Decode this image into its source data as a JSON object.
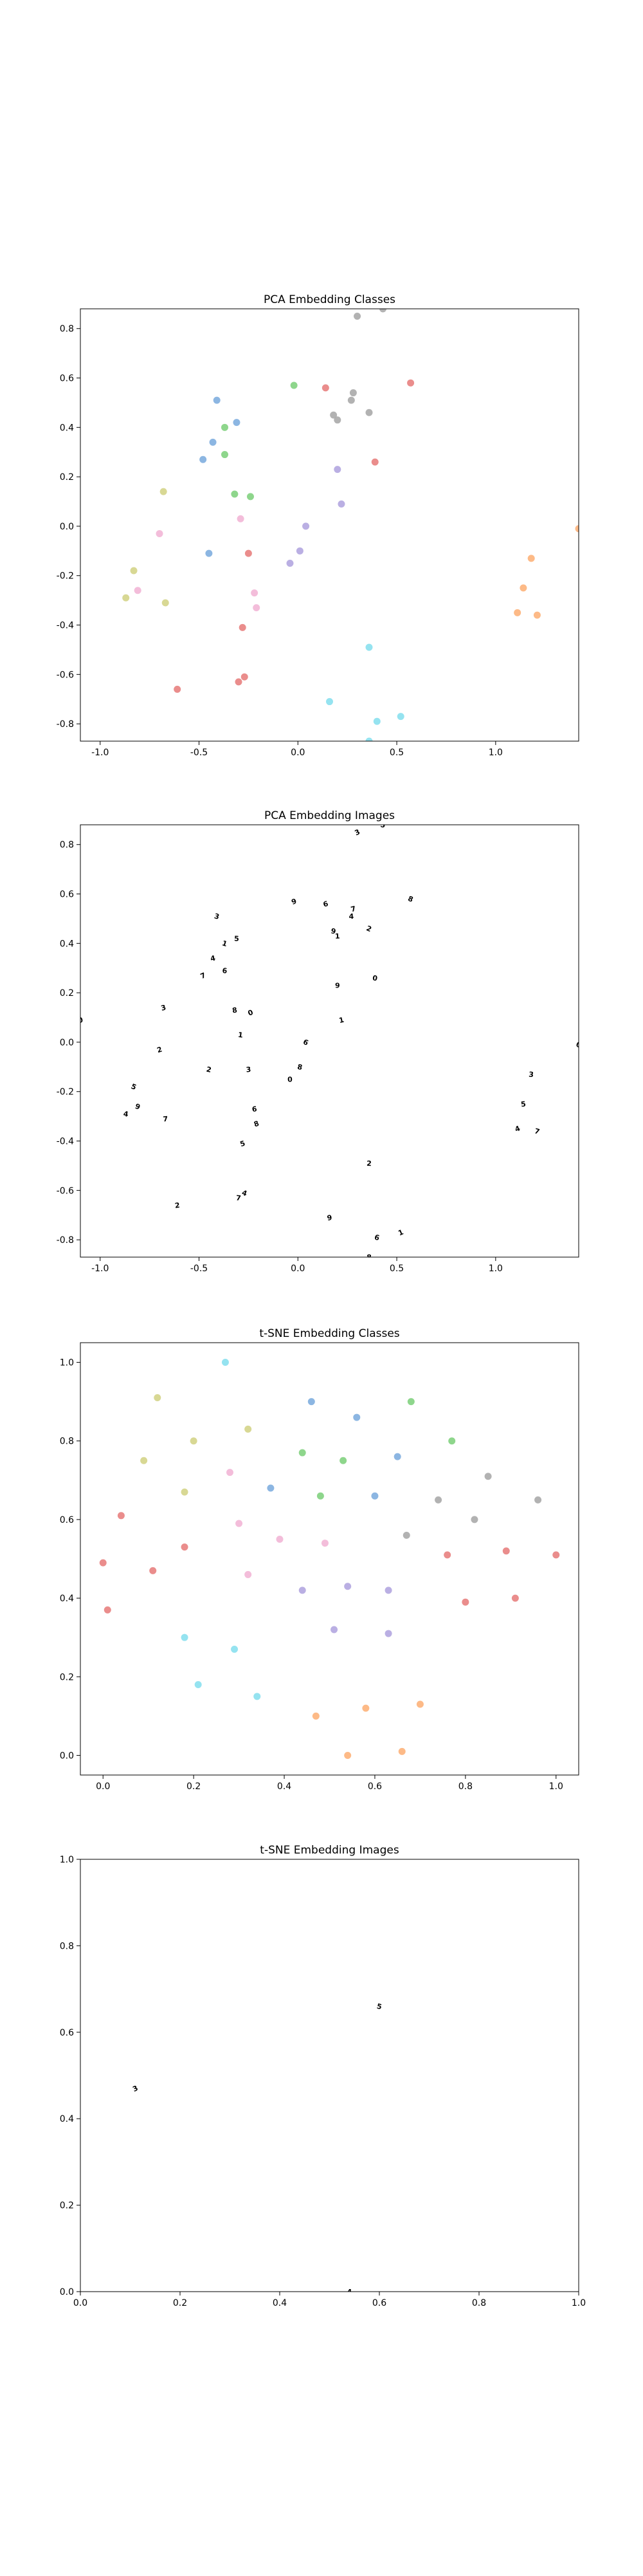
{
  "chart_data": [
    {
      "type": "scatter",
      "title": "PCA Embedding Classes",
      "xlim": [
        -1.1,
        1.42
      ],
      "ylim": [
        -0.87,
        0.88
      ],
      "xticks": [
        "-1.0",
        "-0.5",
        "0.0",
        "0.5",
        "1.0"
      ],
      "yticks": [
        "-0.8",
        "-0.6",
        "-0.4",
        "-0.2",
        "0.0",
        "0.2",
        "0.4",
        "0.6",
        "0.8"
      ],
      "marker": "point",
      "points": [
        {
          "x": 0.3,
          "y": 0.85,
          "c": "#aaaaaa"
        },
        {
          "x": 0.43,
          "y": 0.88,
          "c": "#aaaaaa"
        },
        {
          "x": 0.27,
          "y": 0.51,
          "c": "#aaaaaa"
        },
        {
          "x": 0.28,
          "y": 0.54,
          "c": "#aaaaaa"
        },
        {
          "x": 0.36,
          "y": 0.46,
          "c": "#aaaaaa"
        },
        {
          "x": 0.18,
          "y": 0.45,
          "c": "#aaaaaa"
        },
        {
          "x": 0.2,
          "y": 0.43,
          "c": "#aaaaaa"
        },
        {
          "x": 0.14,
          "y": 0.56,
          "c": "#e8817f"
        },
        {
          "x": 0.57,
          "y": 0.58,
          "c": "#e8817f"
        },
        {
          "x": 0.39,
          "y": 0.26,
          "c": "#e8817f"
        },
        {
          "x": -0.25,
          "y": -0.11,
          "c": "#e8817f"
        },
        {
          "x": -0.28,
          "y": -0.41,
          "c": "#e8817f"
        },
        {
          "x": -0.27,
          "y": -0.61,
          "c": "#e8817f"
        },
        {
          "x": -0.3,
          "y": -0.63,
          "c": "#e8817f"
        },
        {
          "x": -0.61,
          "y": -0.66,
          "c": "#e8817f"
        },
        {
          "x": -0.02,
          "y": 0.57,
          "c": "#82d17f"
        },
        {
          "x": -0.37,
          "y": 0.4,
          "c": "#82d17f"
        },
        {
          "x": -0.37,
          "y": 0.29,
          "c": "#82d17f"
        },
        {
          "x": -0.32,
          "y": 0.13,
          "c": "#82d17f"
        },
        {
          "x": -0.24,
          "y": 0.12,
          "c": "#82d17f"
        },
        {
          "x": -0.41,
          "y": 0.51,
          "c": "#7faedf"
        },
        {
          "x": -0.31,
          "y": 0.42,
          "c": "#7faedf"
        },
        {
          "x": -0.43,
          "y": 0.34,
          "c": "#7faedf"
        },
        {
          "x": -0.48,
          "y": 0.27,
          "c": "#7faedf"
        },
        {
          "x": -0.45,
          "y": -0.11,
          "c": "#7faedf"
        },
        {
          "x": 0.2,
          "y": 0.23,
          "c": "#b3a6e0"
        },
        {
          "x": 0.22,
          "y": 0.09,
          "c": "#b3a6e0"
        },
        {
          "x": 0.04,
          "y": 0.0,
          "c": "#b3a6e0"
        },
        {
          "x": 0.01,
          "y": -0.1,
          "c": "#b3a6e0"
        },
        {
          "x": -0.04,
          "y": -0.15,
          "c": "#b3a6e0"
        },
        {
          "x": -0.68,
          "y": 0.14,
          "c": "#d4d488"
        },
        {
          "x": -0.83,
          "y": -0.18,
          "c": "#d4d488"
        },
        {
          "x": -0.87,
          "y": -0.29,
          "c": "#d4d488"
        },
        {
          "x": -0.67,
          "y": -0.31,
          "c": "#d4d488"
        },
        {
          "x": -0.7,
          "y": -0.03,
          "c": "#f2b6d6"
        },
        {
          "x": -0.81,
          "y": -0.26,
          "c": "#f2b6d6"
        },
        {
          "x": -0.29,
          "y": 0.03,
          "c": "#f2b6d6"
        },
        {
          "x": -0.22,
          "y": -0.27,
          "c": "#f2b6d6"
        },
        {
          "x": -0.21,
          "y": -0.33,
          "c": "#f2b6d6"
        },
        {
          "x": 1.42,
          "y": -0.01,
          "c": "#fdb27a"
        },
        {
          "x": 1.18,
          "y": -0.13,
          "c": "#fdb27a"
        },
        {
          "x": 1.14,
          "y": -0.25,
          "c": "#fdb27a"
        },
        {
          "x": 1.11,
          "y": -0.35,
          "c": "#fdb27a"
        },
        {
          "x": 1.21,
          "y": -0.36,
          "c": "#fdb27a"
        },
        {
          "x": 0.36,
          "y": -0.49,
          "c": "#8ae0ee"
        },
        {
          "x": 0.16,
          "y": -0.71,
          "c": "#8ae0ee"
        },
        {
          "x": 0.52,
          "y": -0.77,
          "c": "#8ae0ee"
        },
        {
          "x": 0.4,
          "y": -0.79,
          "c": "#8ae0ee"
        },
        {
          "x": 0.36,
          "y": -0.87,
          "c": "#8ae0ee"
        }
      ]
    },
    {
      "type": "scatter",
      "title": "PCA Embedding Images",
      "xlim": [
        -1.1,
        1.42
      ],
      "ylim": [
        -0.87,
        0.88
      ],
      "xticks": [
        "-1.0",
        "-0.5",
        "0.0",
        "0.5",
        "1.0"
      ],
      "yticks": [
        "-0.8",
        "-0.6",
        "-0.4",
        "-0.2",
        "0.0",
        "0.2",
        "0.4",
        "0.6",
        "0.8"
      ],
      "marker": "glyph",
      "points": [
        {
          "x": 0.3,
          "y": 0.85
        },
        {
          "x": 0.43,
          "y": 0.88
        },
        {
          "x": 0.27,
          "y": 0.51
        },
        {
          "x": 0.28,
          "y": 0.54
        },
        {
          "x": 0.36,
          "y": 0.46
        },
        {
          "x": 0.18,
          "y": 0.45
        },
        {
          "x": 0.2,
          "y": 0.43
        },
        {
          "x": 0.14,
          "y": 0.56
        },
        {
          "x": 0.57,
          "y": 0.58
        },
        {
          "x": 0.39,
          "y": 0.26
        },
        {
          "x": -0.25,
          "y": -0.11
        },
        {
          "x": -0.28,
          "y": -0.41
        },
        {
          "x": -0.27,
          "y": -0.61
        },
        {
          "x": -0.3,
          "y": -0.63
        },
        {
          "x": -0.61,
          "y": -0.66
        },
        {
          "x": -0.02,
          "y": 0.57
        },
        {
          "x": -0.37,
          "y": 0.4
        },
        {
          "x": -0.37,
          "y": 0.29
        },
        {
          "x": -0.32,
          "y": 0.13
        },
        {
          "x": -0.24,
          "y": 0.12
        },
        {
          "x": -0.41,
          "y": 0.51
        },
        {
          "x": -0.31,
          "y": 0.42
        },
        {
          "x": -0.43,
          "y": 0.34
        },
        {
          "x": -0.48,
          "y": 0.27
        },
        {
          "x": -0.45,
          "y": -0.11
        },
        {
          "x": 0.2,
          "y": 0.23
        },
        {
          "x": 0.22,
          "y": 0.09
        },
        {
          "x": 0.04,
          "y": 0.0
        },
        {
          "x": 0.01,
          "y": -0.1
        },
        {
          "x": -0.04,
          "y": -0.15
        },
        {
          "x": -0.68,
          "y": 0.14
        },
        {
          "x": -0.83,
          "y": -0.18
        },
        {
          "x": -0.87,
          "y": -0.29
        },
        {
          "x": -0.67,
          "y": -0.31
        },
        {
          "x": -0.7,
          "y": -0.03
        },
        {
          "x": -0.81,
          "y": -0.26
        },
        {
          "x": -0.29,
          "y": 0.03
        },
        {
          "x": -0.22,
          "y": -0.27
        },
        {
          "x": -0.21,
          "y": -0.33
        },
        {
          "x": 1.42,
          "y": -0.01
        },
        {
          "x": 1.18,
          "y": -0.13
        },
        {
          "x": 1.14,
          "y": -0.25
        },
        {
          "x": 1.11,
          "y": -0.35
        },
        {
          "x": 1.21,
          "y": -0.36
        },
        {
          "x": 0.36,
          "y": -0.49
        },
        {
          "x": 0.16,
          "y": -0.71
        },
        {
          "x": 0.52,
          "y": -0.77
        },
        {
          "x": 0.4,
          "y": -0.79
        },
        {
          "x": 0.36,
          "y": -0.87
        },
        {
          "x": -1.1,
          "y": 0.09
        }
      ]
    },
    {
      "type": "scatter",
      "title": "t-SNE Embedding Classes",
      "xlim": [
        -0.05,
        1.05
      ],
      "ylim": [
        -0.05,
        1.05
      ],
      "xticks": [
        "0.0",
        "0.2",
        "0.4",
        "0.6",
        "0.8",
        "1.0"
      ],
      "yticks": [
        "0.0",
        "0.2",
        "0.4",
        "0.6",
        "0.8",
        "1.0"
      ],
      "marker": "point",
      "points": [
        {
          "x": 0.27,
          "y": 1.0,
          "c": "#8ae0ee"
        },
        {
          "x": 0.18,
          "y": 0.3,
          "c": "#8ae0ee"
        },
        {
          "x": 0.29,
          "y": 0.27,
          "c": "#8ae0ee"
        },
        {
          "x": 0.21,
          "y": 0.18,
          "c": "#8ae0ee"
        },
        {
          "x": 0.34,
          "y": 0.15,
          "c": "#8ae0ee"
        },
        {
          "x": 0.12,
          "y": 0.91,
          "c": "#d4d488"
        },
        {
          "x": 0.2,
          "y": 0.8,
          "c": "#d4d488"
        },
        {
          "x": 0.32,
          "y": 0.83,
          "c": "#d4d488"
        },
        {
          "x": 0.09,
          "y": 0.75,
          "c": "#d4d488"
        },
        {
          "x": 0.18,
          "y": 0.67,
          "c": "#d4d488"
        },
        {
          "x": 0.46,
          "y": 0.9,
          "c": "#7faedf"
        },
        {
          "x": 0.56,
          "y": 0.86,
          "c": "#7faedf"
        },
        {
          "x": 0.65,
          "y": 0.76,
          "c": "#7faedf"
        },
        {
          "x": 0.37,
          "y": 0.68,
          "c": "#7faedf"
        },
        {
          "x": 0.6,
          "y": 0.66,
          "c": "#7faedf"
        },
        {
          "x": 0.68,
          "y": 0.9,
          "c": "#82d17f"
        },
        {
          "x": 0.77,
          "y": 0.8,
          "c": "#82d17f"
        },
        {
          "x": 0.44,
          "y": 0.77,
          "c": "#82d17f"
        },
        {
          "x": 0.53,
          "y": 0.75,
          "c": "#82d17f"
        },
        {
          "x": 0.48,
          "y": 0.66,
          "c": "#82d17f"
        },
        {
          "x": 0.28,
          "y": 0.72,
          "c": "#f2b6d6"
        },
        {
          "x": 0.3,
          "y": 0.59,
          "c": "#f2b6d6"
        },
        {
          "x": 0.39,
          "y": 0.55,
          "c": "#f2b6d6"
        },
        {
          "x": 0.49,
          "y": 0.54,
          "c": "#f2b6d6"
        },
        {
          "x": 0.32,
          "y": 0.46,
          "c": "#f2b6d6"
        },
        {
          "x": 0.04,
          "y": 0.61,
          "c": "#e8817f"
        },
        {
          "x": 0.18,
          "y": 0.53,
          "c": "#e8817f"
        },
        {
          "x": 0.0,
          "y": 0.49,
          "c": "#e8817f"
        },
        {
          "x": 0.11,
          "y": 0.47,
          "c": "#e8817f"
        },
        {
          "x": 0.01,
          "y": 0.37,
          "c": "#e8817f"
        },
        {
          "x": 0.74,
          "y": 0.65,
          "c": "#aaaaaa"
        },
        {
          "x": 0.85,
          "y": 0.71,
          "c": "#aaaaaa"
        },
        {
          "x": 0.96,
          "y": 0.65,
          "c": "#aaaaaa"
        },
        {
          "x": 0.82,
          "y": 0.6,
          "c": "#aaaaaa"
        },
        {
          "x": 0.67,
          "y": 0.56,
          "c": "#aaaaaa"
        },
        {
          "x": 0.76,
          "y": 0.51,
          "c": "#e8817f"
        },
        {
          "x": 0.89,
          "y": 0.52,
          "c": "#e8817f"
        },
        {
          "x": 1.0,
          "y": 0.51,
          "c": "#e8817f"
        },
        {
          "x": 0.8,
          "y": 0.39,
          "c": "#e8817f"
        },
        {
          "x": 0.91,
          "y": 0.4,
          "c": "#e8817f"
        },
        {
          "x": 0.44,
          "y": 0.42,
          "c": "#b3a6e0"
        },
        {
          "x": 0.54,
          "y": 0.43,
          "c": "#b3a6e0"
        },
        {
          "x": 0.63,
          "y": 0.42,
          "c": "#b3a6e0"
        },
        {
          "x": 0.51,
          "y": 0.32,
          "c": "#b3a6e0"
        },
        {
          "x": 0.63,
          "y": 0.31,
          "c": "#b3a6e0"
        },
        {
          "x": 0.47,
          "y": 0.1,
          "c": "#fdb27a"
        },
        {
          "x": 0.54,
          "y": 0.0,
          "c": "#fdb27a"
        },
        {
          "x": 0.58,
          "y": 0.12,
          "c": "#fdb27a"
        },
        {
          "x": 0.66,
          "y": 0.01,
          "c": "#fdb27a"
        },
        {
          "x": 0.7,
          "y": 0.13,
          "c": "#fdb27a"
        }
      ]
    },
    {
      "type": "scatter",
      "title": "t-SNE Embedding Images",
      "xlim": [
        0.0,
        1.0
      ],
      "ylim": [
        0.0,
        1.0
      ],
      "xticks": [
        "0.0",
        "0.2",
        "0.4",
        "0.6",
        "0.8",
        "1.0"
      ],
      "yticks": [
        "0.0",
        "0.2",
        "0.4",
        "0.6",
        "0.8",
        "1.0"
      ],
      "marker": "glyph",
      "points": [
        {
          "x": 0.11,
          "y": 0.47
        },
        {
          "x": 0.6,
          "y": 0.66
        },
        {
          "x": 0.54,
          "y": 0.0
        }
      ]
    }
  ]
}
